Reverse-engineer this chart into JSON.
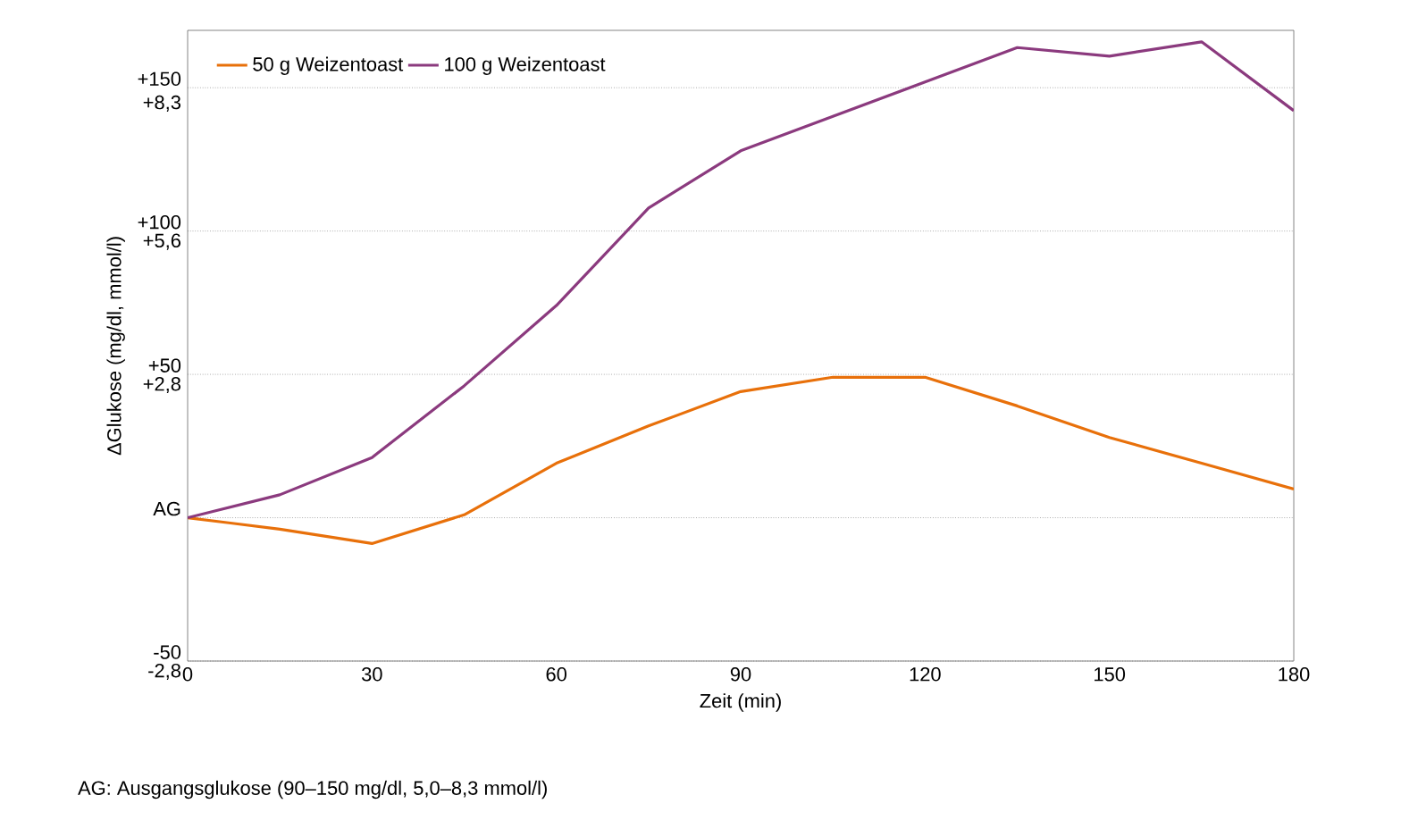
{
  "chart_data": {
    "type": "line",
    "xlabel": "Zeit (min)",
    "ylabel": "ΔGlukose (mg/dl, mmol/l)",
    "x": [
      0,
      15,
      30,
      45,
      60,
      75,
      90,
      105,
      120,
      135,
      150,
      165,
      180
    ],
    "series": [
      {
        "name": "50 g Weizentoast",
        "color": "#e8700a",
        "values": [
          0,
          -4,
          -9,
          1,
          19,
          32,
          44,
          49,
          49,
          39,
          28,
          19,
          10
        ]
      },
      {
        "name": "100 g Weizentoast",
        "color": "#8b3a7e",
        "values": [
          0,
          8,
          21,
          46,
          74,
          108,
          128,
          140,
          152,
          164,
          161,
          166,
          142
        ]
      }
    ],
    "xlim": [
      0,
      180
    ],
    "xticks": [
      0,
      30,
      60,
      90,
      120,
      150,
      180
    ],
    "ylim": [
      -50,
      170
    ],
    "yticks": [
      {
        "value": -50,
        "label": "-50"
      },
      {
        "value": 0,
        "label": "AG"
      },
      {
        "value": 50,
        "label": "+50"
      },
      {
        "value": 100,
        "label": "+100"
      },
      {
        "value": 150,
        "label": "+150"
      }
    ],
    "y2lim": [
      -2.8,
      9.52
    ],
    "y2ticks": [
      {
        "value": -2.8,
        "label": "-2,8"
      },
      {
        "value": 2.8,
        "label": "+2,8"
      },
      {
        "value": 5.6,
        "label": "+5,6"
      },
      {
        "value": 8.3,
        "label": "+8,3"
      }
    ],
    "grid": "y",
    "legend": "top left",
    "marker": "none",
    "line_style": "solid",
    "annotations": [
      "AG: Ausgangsglukose (90–150 mg/dl, 5,0–8,3 mmol/l)"
    ]
  }
}
